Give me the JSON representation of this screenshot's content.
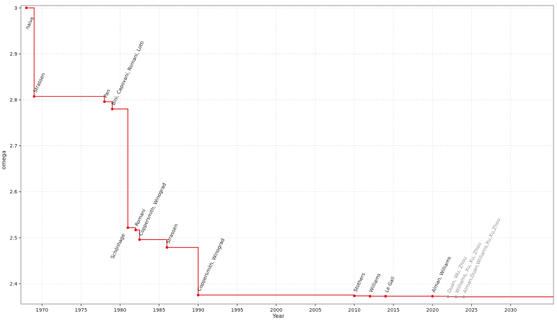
{
  "chart_data": {
    "type": "line",
    "subtype": "step-post",
    "xlabel": "Year",
    "ylabel": "omega",
    "xlim": [
      1967.3,
      2035.5
    ],
    "ylim": [
      2.356,
      3.005
    ],
    "xticks": [
      1970,
      1975,
      1980,
      1985,
      1990,
      1995,
      2000,
      2005,
      2010,
      2015,
      2020,
      2025,
      2030
    ],
    "yticks": [
      2.4,
      2.5,
      2.6,
      2.7,
      2.8,
      2.9,
      3
    ],
    "grid": true,
    "legend_position": "none",
    "colors": {
      "line": "#e01b24",
      "muted_point": "#9a9a9a",
      "muted_label": "#8d8d8d",
      "grid": "#c9c9c9",
      "frame": "#9a9a9a",
      "tick": "#444444",
      "text": "#1a1a1a"
    },
    "points": [
      {
        "year": 1968,
        "omega": 3.0,
        "label": "naive",
        "label_side": "below_right",
        "muted": false
      },
      {
        "year": 1969,
        "omega": 2.8074,
        "label": "Strassen",
        "label_side": "above",
        "muted": false
      },
      {
        "year": 1978,
        "omega": 2.796,
        "label": "Pan",
        "label_side": "above",
        "muted": false
      },
      {
        "year": 1979,
        "omega": 2.78,
        "label": "Bini, Capovani, Romani, Lotti",
        "label_side": "above",
        "muted": false
      },
      {
        "year": 1981,
        "omega": 2.522,
        "label": "Schönhage",
        "label_side": "below",
        "muted": false
      },
      {
        "year": 1982,
        "omega": 2.517,
        "label": "Romani",
        "label_side": "above",
        "muted": false
      },
      {
        "year": 1982.5,
        "omega": 2.496,
        "label": "Coppersmith, Winograd",
        "label_side": "above",
        "muted": false
      },
      {
        "year": 1986,
        "omega": 2.479,
        "label": "Strassen",
        "label_side": "above",
        "muted": false
      },
      {
        "year": 1990,
        "omega": 2.3755,
        "label": "Coppersmith, Winograd",
        "label_side": "above",
        "muted": false
      },
      {
        "year": 2010,
        "omega": 2.3737,
        "label": "Stothers",
        "label_side": "above",
        "muted": false
      },
      {
        "year": 2012,
        "omega": 2.3729,
        "label": "Williams",
        "label_side": "above",
        "muted": false
      },
      {
        "year": 2014,
        "omega": 2.3729,
        "label": "Le Gall",
        "label_side": "above",
        "muted": false
      },
      {
        "year": 2020,
        "omega": 2.3728,
        "label": "Alman, Williams",
        "label_side": "above",
        "muted": false
      },
      {
        "year": 2022,
        "omega": 2.3719,
        "label": "Duan, Wu, Zhou",
        "label_side": "above",
        "muted": true
      },
      {
        "year": 2023,
        "omega": 2.3716,
        "label": "Williams, Xu, Xu, Zhou",
        "label_side": "above",
        "muted": true
      },
      {
        "year": 2024,
        "omega": 2.3716,
        "label": "Alman,Duan,Williams,Xu,Xu,Zhou",
        "label_side": "above",
        "muted": true
      }
    ]
  }
}
